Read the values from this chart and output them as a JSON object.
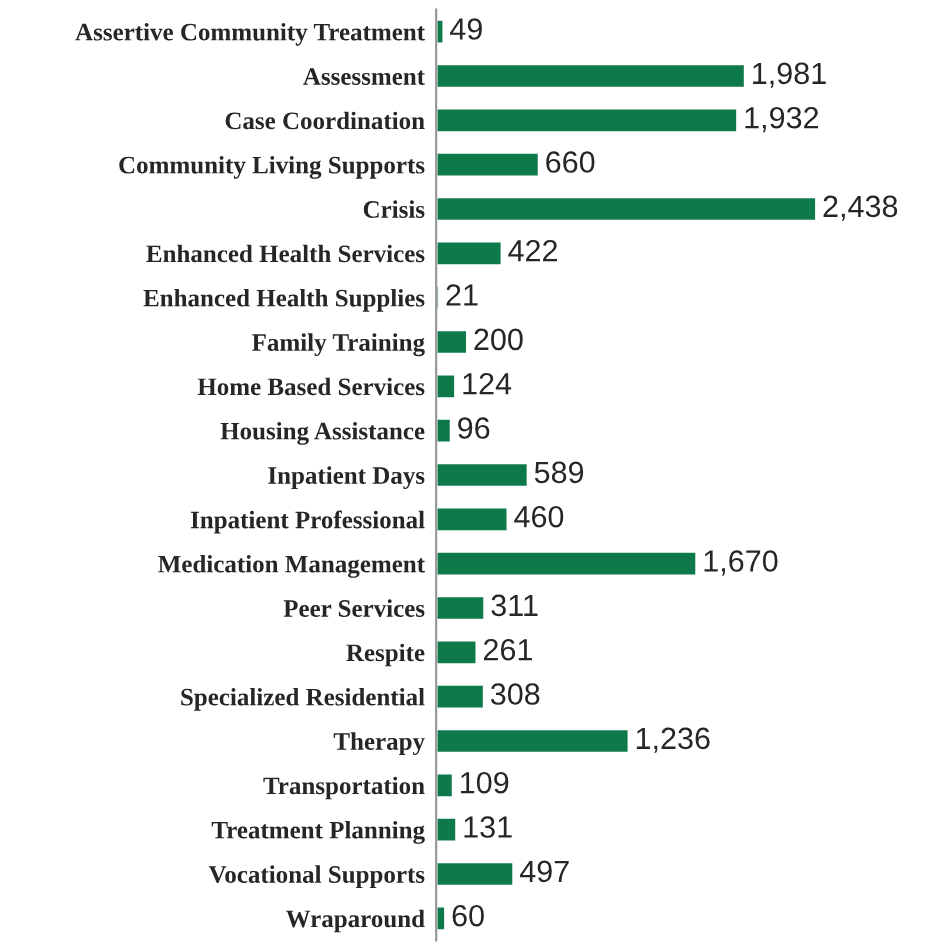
{
  "chart_data": {
    "type": "bar",
    "orientation": "horizontal",
    "categories": [
      "Assertive Community Treatment",
      "Assessment",
      "Case Coordination",
      "Community Living Supports",
      "Crisis",
      "Enhanced Health Services",
      "Enhanced Health Supplies",
      "Family Training",
      "Home Based Services",
      "Housing Assistance",
      "Inpatient Days",
      "Inpatient Professional",
      "Medication Management",
      "Peer Services",
      "Respite",
      "Specialized Residential",
      "Therapy",
      "Transportation",
      "Treatment Planning",
      "Vocational Supports",
      "Wraparound"
    ],
    "values": [
      49,
      1981,
      1932,
      660,
      2438,
      422,
      21,
      200,
      124,
      96,
      589,
      460,
      1670,
      311,
      261,
      308,
      1236,
      109,
      131,
      497,
      60
    ],
    "value_labels": [
      "49",
      "1,981",
      "1,932",
      "660",
      "2,438",
      "422",
      "21",
      "200",
      "124",
      "96",
      "589",
      "460",
      "1,670",
      "311",
      "261",
      "308",
      "1,236",
      "109",
      "131",
      "497",
      "60"
    ],
    "color": "#0e7a4c",
    "grid": false,
    "legend": false
  }
}
